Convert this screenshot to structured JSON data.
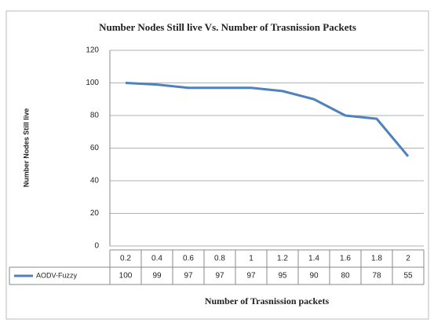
{
  "chart_data": {
    "type": "line",
    "title": "Number Nodes Still live Vs. Number of Trasnission Packets",
    "y_label": "Number Nodes Still live",
    "x_label": "Number of Trasnission packets",
    "categories": [
      "0.2",
      "0.4",
      "0.6",
      "0.8",
      "1",
      "1.2",
      "1.4",
      "1.6",
      "1.8",
      "2"
    ],
    "series": [
      {
        "name": "AODV-Fuzzy",
        "color": "#4f81bd",
        "values": [
          100,
          99,
          97,
          97,
          97,
          95,
          90,
          80,
          78,
          55
        ]
      }
    ],
    "ylim": [
      0,
      120
    ],
    "yticks": [
      0,
      20,
      40,
      60,
      80,
      100,
      120
    ],
    "grid": true
  }
}
